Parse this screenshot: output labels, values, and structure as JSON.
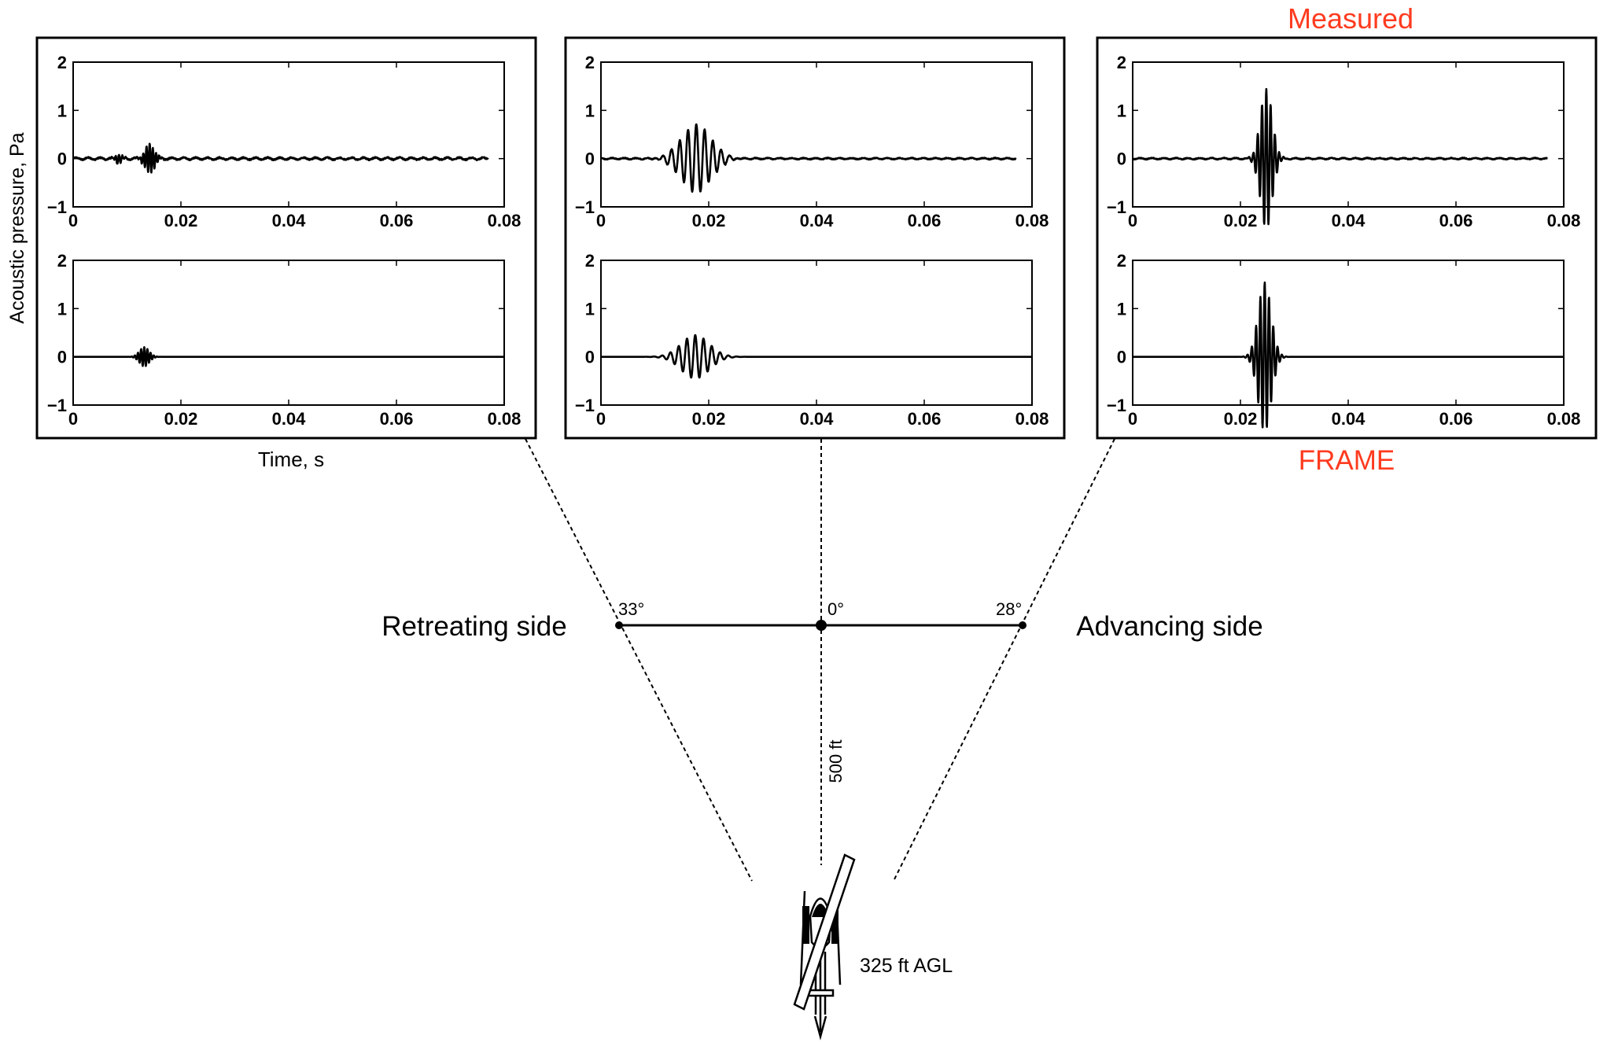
{
  "labels": {
    "ylabel": "Acoustic pressure, Pa",
    "xlabel": "Time, s",
    "measured": "Measured",
    "frame": "FRAME",
    "retreating": "Retreating side",
    "advancing": "Advancing side",
    "angle_left": "33°",
    "angle_center": "0°",
    "angle_right": "28°",
    "distance": "500 ft",
    "altitude": "325 ft AGL"
  },
  "colors": {
    "accent": "#ff3b1f",
    "line": "#000000"
  },
  "chart_data": [
    {
      "type": "line",
      "position": "left-top",
      "series_label": "Measured",
      "xlim": [
        0,
        0.08
      ],
      "ylim": [
        -1,
        2
      ],
      "xticks": [
        "0",
        "0.02",
        "0.04",
        "0.06",
        "0.08"
      ],
      "yticks": [
        "−1",
        "0",
        "1",
        "2"
      ],
      "signal_end": 0.077,
      "pulses": [
        {
          "t": 0.0142,
          "a": 0.3,
          "f": 1700,
          "s": 0.0009
        },
        {
          "t": 0.0085,
          "a": 0.1,
          "f": 1600,
          "s": 0.0006
        }
      ],
      "noise": 0.035
    },
    {
      "type": "line",
      "position": "left-bottom",
      "series_label": "FRAME",
      "xlim": [
        0,
        0.08
      ],
      "ylim": [
        -1,
        2
      ],
      "xticks": [
        "0",
        "0.02",
        "0.04",
        "0.06",
        "0.08"
      ],
      "yticks": [
        "−1",
        "0",
        "1",
        "2"
      ],
      "signal_end": 0.08,
      "pulses": [
        {
          "t": 0.0132,
          "a": 0.2,
          "f": 1700,
          "s": 0.0009
        }
      ],
      "noise": 0
    },
    {
      "type": "line",
      "position": "center-top",
      "series_label": "Measured",
      "xlim": [
        0,
        0.08
      ],
      "ylim": [
        -1,
        2
      ],
      "xticks": [
        "0",
        "0.02",
        "0.04",
        "0.06",
        "0.08"
      ],
      "yticks": [
        "−1",
        "0",
        "1",
        "2"
      ],
      "signal_end": 0.077,
      "pulses": [
        {
          "t": 0.0177,
          "a": 0.7,
          "f": 650,
          "s": 0.0028
        }
      ],
      "noise": 0.02
    },
    {
      "type": "line",
      "position": "center-bottom",
      "series_label": "FRAME",
      "xlim": [
        0,
        0.08
      ],
      "ylim": [
        -1,
        2
      ],
      "xticks": [
        "0",
        "0.02",
        "0.04",
        "0.06",
        "0.08"
      ],
      "yticks": [
        "−1",
        "0",
        "1",
        "2"
      ],
      "signal_end": 0.08,
      "pulses": [
        {
          "t": 0.0175,
          "a": 0.45,
          "f": 650,
          "s": 0.0026
        }
      ],
      "noise": 0
    },
    {
      "type": "line",
      "position": "right-top",
      "series_label": "Measured",
      "xlim": [
        0,
        0.08
      ],
      "ylim": [
        -1,
        2
      ],
      "xticks": [
        "0",
        "0.02",
        "0.04",
        "0.06",
        "0.08"
      ],
      "yticks": [
        "−1",
        "0",
        "1",
        "2"
      ],
      "signal_end": 0.077,
      "pulses": [
        {
          "t": 0.0248,
          "a": 1.45,
          "f": 1250,
          "s": 0.0011
        }
      ],
      "noise": 0.02
    },
    {
      "type": "line",
      "position": "right-bottom",
      "series_label": "FRAME",
      "xlim": [
        0,
        0.08
      ],
      "ylim": [
        -1,
        2
      ],
      "xticks": [
        "0",
        "0.02",
        "0.04",
        "0.06",
        "0.08"
      ],
      "yticks": [
        "−1",
        "0",
        "1",
        "2"
      ],
      "signal_end": 0.08,
      "pulses": [
        {
          "t": 0.0245,
          "a": 1.55,
          "f": 1250,
          "s": 0.0012
        }
      ],
      "noise": 0
    }
  ]
}
